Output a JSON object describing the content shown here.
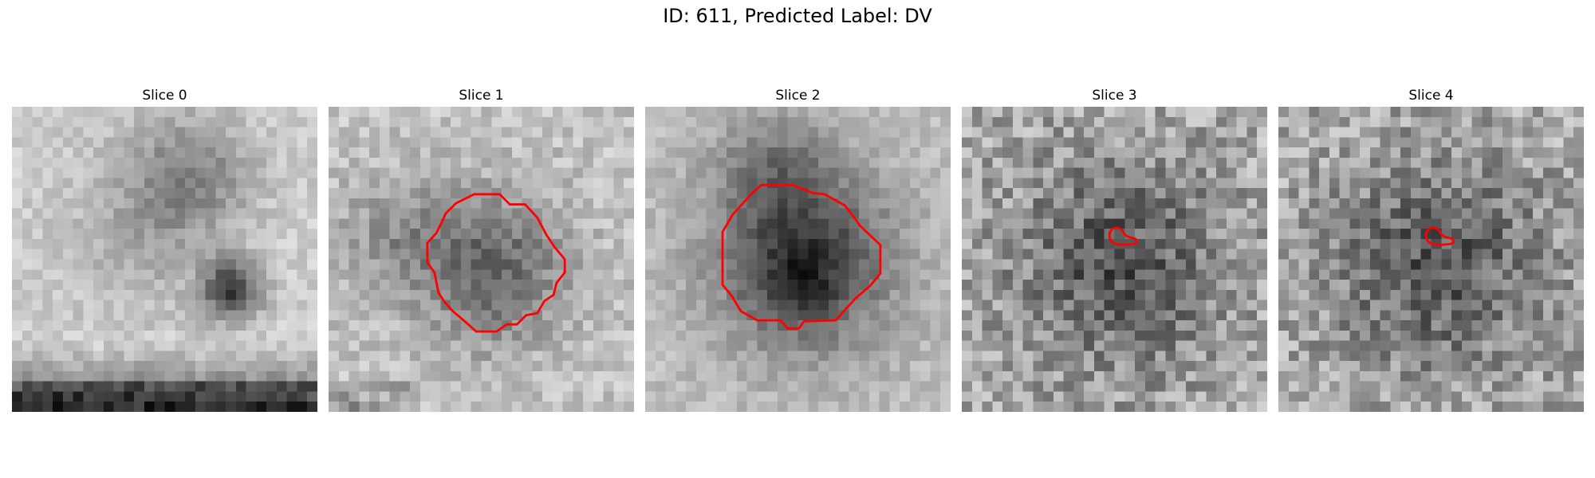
{
  "figure": {
    "title": "ID: 611, Predicted Label: DV",
    "contour_color": "#ff0000"
  },
  "slices": [
    {
      "title": "Slice 0",
      "pattern": "dual-blob-dark-bottom",
      "has_contour": false
    },
    {
      "title": "Slice 1",
      "pattern": "round-blob",
      "has_contour": true,
      "contour_size": "large"
    },
    {
      "title": "Slice 2",
      "pattern": "dark-central-mass",
      "has_contour": true,
      "contour_size": "large"
    },
    {
      "title": "Slice 3",
      "pattern": "noisy-central",
      "has_contour": true,
      "contour_size": "small"
    },
    {
      "title": "Slice 4",
      "pattern": "noisy-central",
      "has_contour": true,
      "contour_size": "small"
    }
  ]
}
